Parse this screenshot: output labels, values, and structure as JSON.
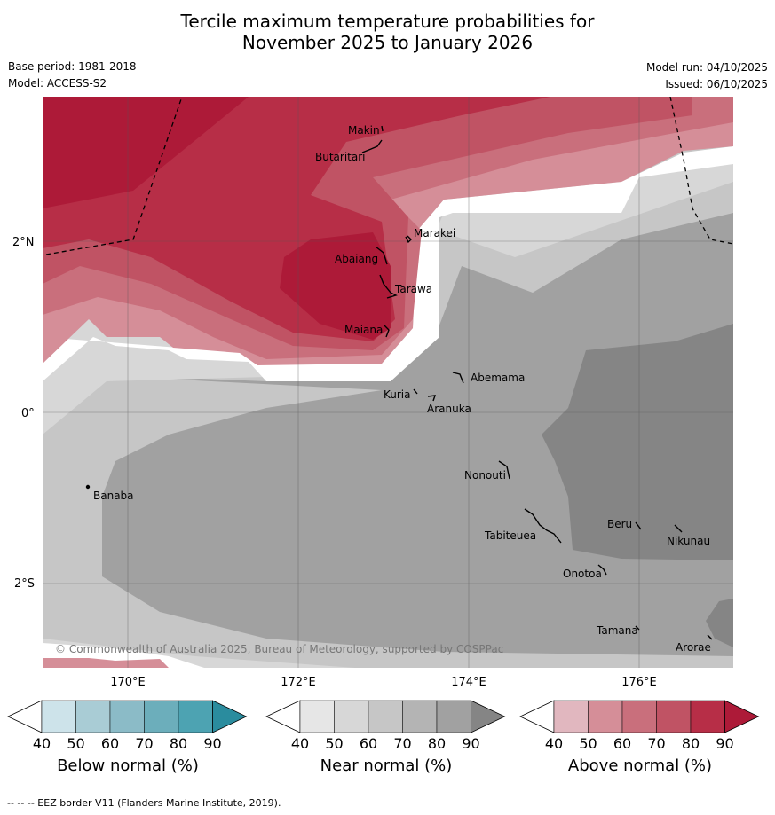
{
  "title": {
    "line1": "Tercile maximum temperature probabilities for",
    "line2": "November 2025 to January 2026"
  },
  "meta": {
    "base_period": "Base period: 1981-2018",
    "model": "Model: ACCESS-S2",
    "model_run": "Model run: 04/10/2025",
    "issued": "Issued: 06/10/2025"
  },
  "axes": {
    "lat_labels": [
      "2°N",
      "0°",
      "2°S"
    ],
    "lon_labels": [
      "170°E",
      "172°E",
      "174°E",
      "176°E"
    ]
  },
  "places": [
    "Makin",
    "Butaritari",
    "Marakei",
    "Abaiang",
    "Tarawa",
    "Maiana",
    "Abemama",
    "Kuria",
    "Aranuka",
    "Banaba",
    "Nonouti",
    "Tabiteuea",
    "Beru",
    "Nikunau",
    "Onotoa",
    "Tamana",
    "Arorae"
  ],
  "copyright": "© Commonwealth of Australia 2025, Bureau of Meteorology, supported by COSPPac",
  "colorbars": [
    {
      "label": "Below normal (%)",
      "ticks": [
        "40",
        "50",
        "60",
        "70",
        "80",
        "90"
      ],
      "colors": [
        "#cde3ea",
        "#a9ccd5",
        "#8bbbc7",
        "#6caebb",
        "#4da3b2",
        "#2a8c9e"
      ]
    },
    {
      "label": "Near normal (%)",
      "ticks": [
        "40",
        "50",
        "60",
        "70",
        "80",
        "90"
      ],
      "colors": [
        "#e6e6e6",
        "#d7d7d7",
        "#c6c6c6",
        "#b4b4b4",
        "#a1a1a1",
        "#858585"
      ]
    },
    {
      "label": "Above normal (%)",
      "ticks": [
        "40",
        "50",
        "60",
        "70",
        "80",
        "90"
      ],
      "colors": [
        "#e1b7bf",
        "#d58e98",
        "#c96f7c",
        "#c05364",
        "#b72e47",
        "#ad1a38"
      ]
    }
  ],
  "footer": "--  --  -- EEZ border V11 (Flanders Marine Institute, 2019)."
}
